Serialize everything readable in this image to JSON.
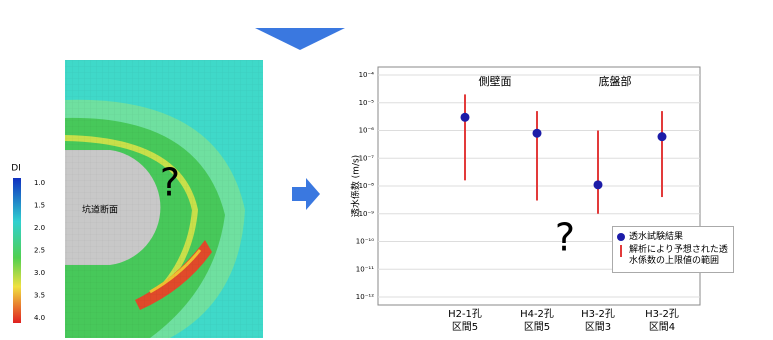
{
  "left_figure": {
    "label": "坑道断面",
    "question": "?",
    "colorbar": {
      "title": "DI",
      "labels": [
        "1.0",
        "1.5",
        "2.0",
        "2.5",
        "3.0",
        "3.5",
        "4.0"
      ]
    }
  },
  "chart_data": {
    "type": "errorbar",
    "ylabel": "透水係数 (m/s)",
    "annotations": [
      "側壁面",
      "底盤部",
      "?"
    ],
    "categories": [
      [
        "H2-1孔",
        "区間5"
      ],
      [
        "H4-2孔",
        "区間5"
      ],
      [
        "H3-2孔",
        "区間3"
      ],
      [
        "H3-2孔",
        "区間4"
      ]
    ],
    "series": [
      {
        "name": "透水試験結果",
        "color": "#1c1ca8",
        "values": [
          3e-06,
          8e-07,
          1.1e-08,
          6e-07
        ]
      },
      {
        "name": "解析により予想された透水係数の上限値の範囲",
        "color": "#e23a3a",
        "low": [
          1.6e-08,
          3e-09,
          1e-09,
          4e-09
        ],
        "high": [
          2e-05,
          5e-06,
          1e-06,
          5e-06
        ]
      }
    ],
    "log_scale": true,
    "ylim": [
      1e-12,
      0.0001
    ],
    "yticks": [
      {
        "value": 1e-12,
        "label": "10⁻¹²"
      },
      {
        "value": 1e-11,
        "label": "10⁻¹¹"
      },
      {
        "value": 1e-10,
        "label": "10⁻¹⁰"
      },
      {
        "value": 1e-09,
        "label": "10⁻⁹"
      },
      {
        "value": 1e-08,
        "label": "10⁻⁸"
      },
      {
        "value": 1e-07,
        "label": "10⁻⁷"
      },
      {
        "value": 1e-06,
        "label": "10⁻⁶"
      },
      {
        "value": 1e-05,
        "label": "10⁻⁵"
      },
      {
        "value": 0.0001,
        "label": "10⁻⁴"
      }
    ],
    "grid": true
  }
}
